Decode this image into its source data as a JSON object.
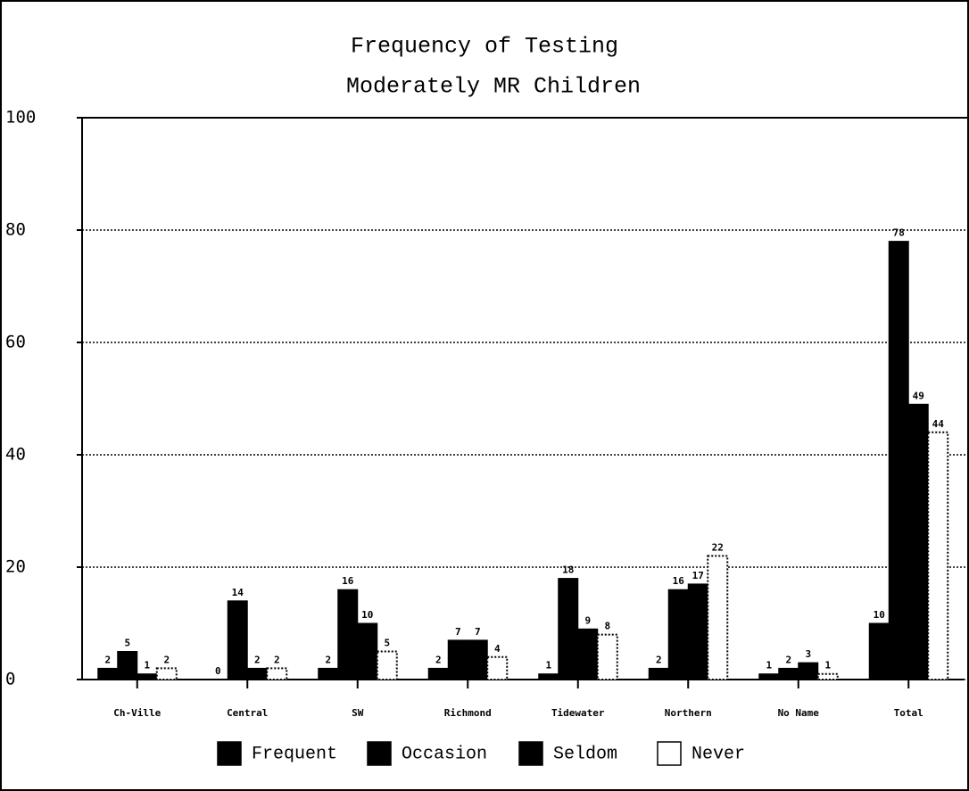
{
  "chart_data": {
    "type": "bar",
    "title": "Frequency of Testing",
    "subtitle": "Moderately MR Children",
    "categories": [
      "Ch-Ville",
      "Central",
      "SW",
      "Richmond",
      "Tidewater",
      "Northern",
      "No Name",
      "Total"
    ],
    "series": [
      {
        "name": "Frequent",
        "color": "#000000",
        "values": [
          2,
          0,
          2,
          2,
          1,
          2,
          1,
          10
        ]
      },
      {
        "name": "Occasion",
        "color": "#000000",
        "values": [
          5,
          14,
          16,
          7,
          18,
          16,
          2,
          78
        ]
      },
      {
        "name": "Seldom",
        "color": "#000000",
        "values": [
          1,
          2,
          10,
          7,
          9,
          17,
          3,
          49
        ]
      },
      {
        "name": "Never",
        "color": "#ffffff",
        "values": [
          2,
          2,
          5,
          4,
          8,
          22,
          1,
          44
        ]
      }
    ],
    "ylim": [
      0,
      100
    ],
    "yticks": [
      0,
      20,
      40,
      60,
      80,
      100
    ],
    "grid": true
  }
}
